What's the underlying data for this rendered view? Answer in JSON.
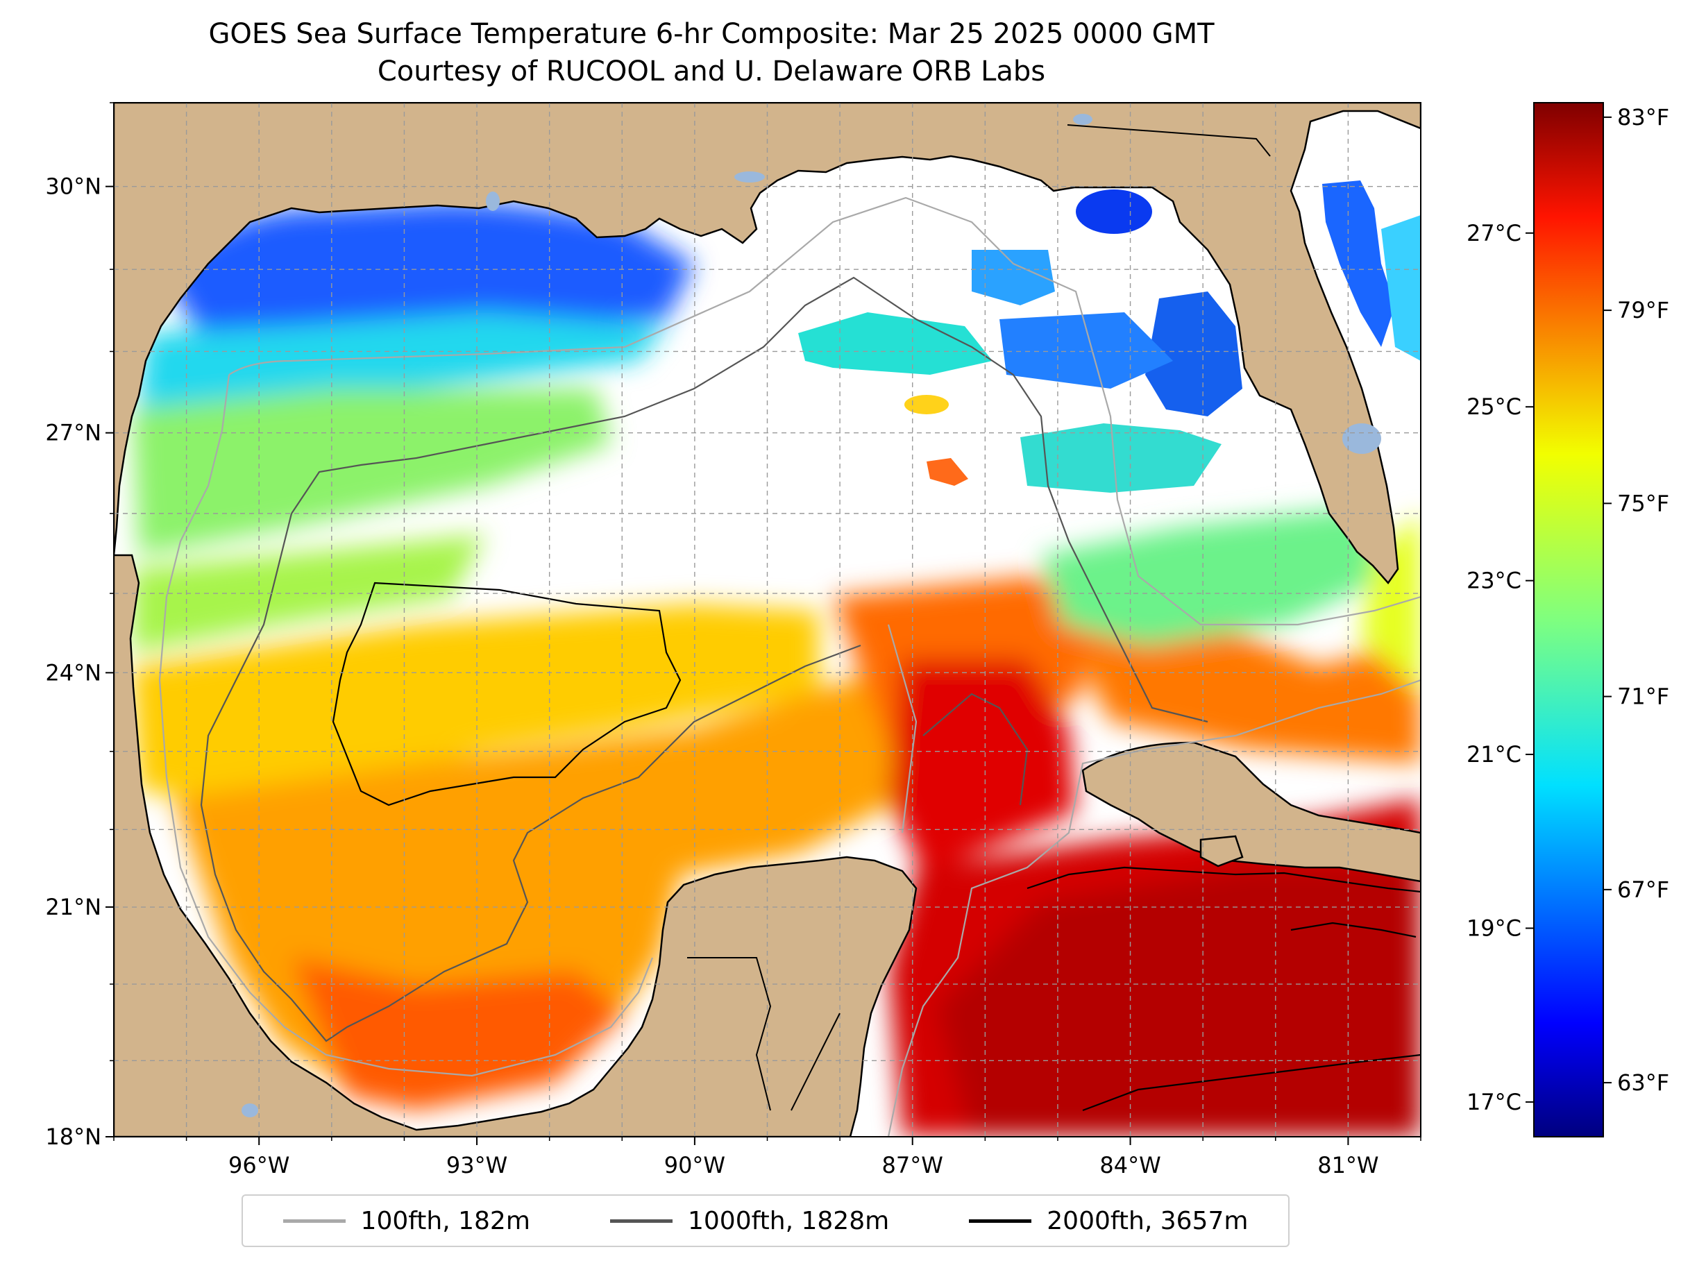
{
  "title_line1": "GOES Sea Surface Temperature 6-hr Composite: Mar 25 2025 0000 GMT",
  "title_line2": "Courtesy of RUCOOL and U. Delaware ORB Labs",
  "map": {
    "lon_range": [
      -98,
      -80
    ],
    "lat_range": [
      18,
      31
    ],
    "lat_ticks": [
      {
        "value": 30,
        "label": "30°N"
      },
      {
        "value": 27,
        "label": "27°N"
      },
      {
        "value": 24,
        "label": "24°N"
      },
      {
        "value": 21,
        "label": "21°N"
      },
      {
        "value": 18,
        "label": "18°N"
      }
    ],
    "lon_ticks": [
      {
        "value": -96,
        "label": "96°W"
      },
      {
        "value": -93,
        "label": "93°W"
      },
      {
        "value": -90,
        "label": "90°W"
      },
      {
        "value": -87,
        "label": "87°W"
      },
      {
        "value": -84,
        "label": "84°W"
      },
      {
        "value": -81,
        "label": "81°W"
      }
    ],
    "colors": {
      "land": "#d2b48c",
      "water_nodata": "#ffffff",
      "lakes": "#9ab8dc"
    }
  },
  "colorbar": {
    "colormap": "jet",
    "range_c": [
      16.6,
      28.5
    ],
    "celsius_ticks": [
      {
        "value": 27,
        "label": "27°C"
      },
      {
        "value": 25,
        "label": "25°C"
      },
      {
        "value": 23,
        "label": "23°C"
      },
      {
        "value": 21,
        "label": "21°C"
      },
      {
        "value": 19,
        "label": "19°C"
      },
      {
        "value": 17,
        "label": "17°C"
      }
    ],
    "fahrenheit_ticks": [
      {
        "value": 83,
        "label": "83°F"
      },
      {
        "value": 79,
        "label": "79°F"
      },
      {
        "value": 75,
        "label": "75°F"
      },
      {
        "value": 71,
        "label": "71°F"
      },
      {
        "value": 67,
        "label": "67°F"
      },
      {
        "value": 63,
        "label": "63°F"
      }
    ]
  },
  "legend": [
    {
      "label": "100fth, 182m",
      "color": "#a9a9a9"
    },
    {
      "label": "1000fth, 1828m",
      "color": "#555555"
    },
    {
      "label": "2000fth, 3657m",
      "color": "#000000"
    }
  ]
}
